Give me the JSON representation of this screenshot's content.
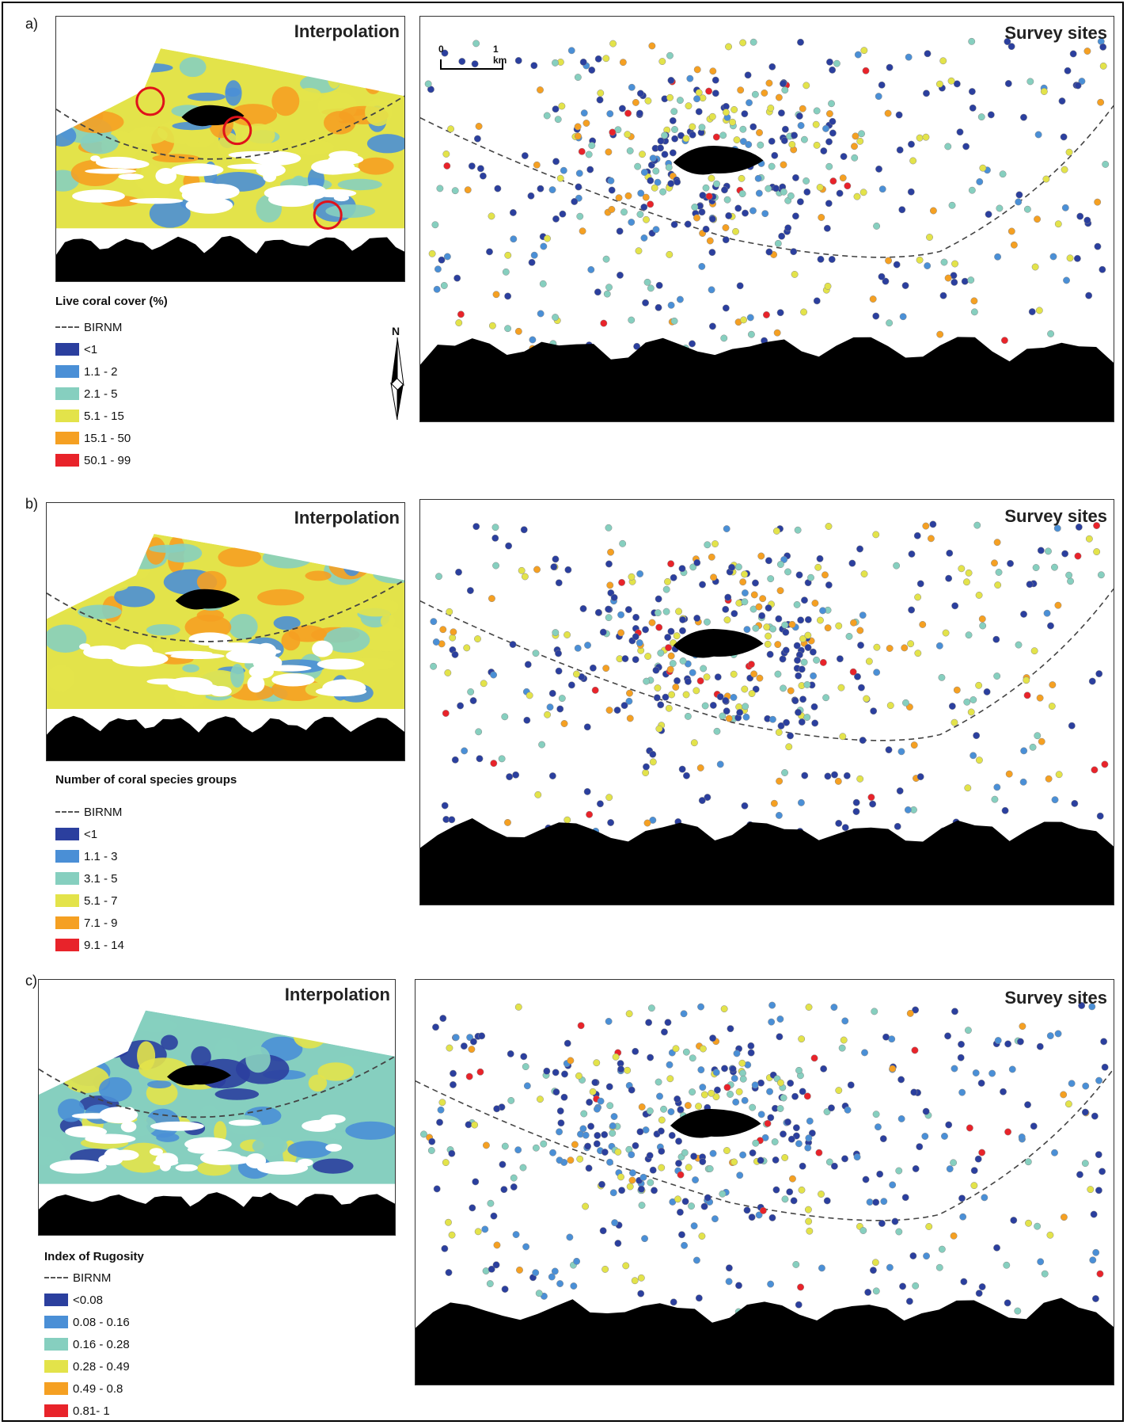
{
  "panels": [
    {
      "letter": "a)",
      "interp_title": "Interpolation",
      "survey_title": "Survey sites",
      "legend_title": "Live coral cover (%)",
      "boundary_label": "BIRNM",
      "classes": [
        "<1",
        "1.1 - 2",
        "2.1 - 5",
        "5.1 - 15",
        "15.1 - 50",
        "50.1 - 99"
      ]
    },
    {
      "letter": "b)",
      "interp_title": "Interpolation",
      "survey_title": "Survey sites",
      "legend_title": "Number of coral species groups",
      "boundary_label": "BIRNM",
      "classes": [
        "<1",
        "1.1 - 3",
        "3.1 - 5",
        "5.1 - 7",
        "7.1 - 9",
        "9.1 - 14"
      ]
    },
    {
      "letter": "c)",
      "interp_title": "Interpolation",
      "survey_title": "Survey sites",
      "legend_title": "Index of Rugosity",
      "boundary_label": "BIRNM",
      "classes": [
        "<0.08",
        "0.08 - 0.16",
        "0.16 - 0.28",
        "0.28 - 0.49",
        "0.49 - 0.8",
        "0.81- 1"
      ]
    }
  ],
  "class_colors": [
    "#2b3f9e",
    "#4a8fd6",
    "#86cfbf",
    "#e3e34a",
    "#f5a022",
    "#e8232a"
  ],
  "scale_bar": {
    "start_label": "0",
    "end_label": "1 km"
  },
  "north_arrow": {
    "label": "N",
    "icon": "north-arrow-icon"
  }
}
